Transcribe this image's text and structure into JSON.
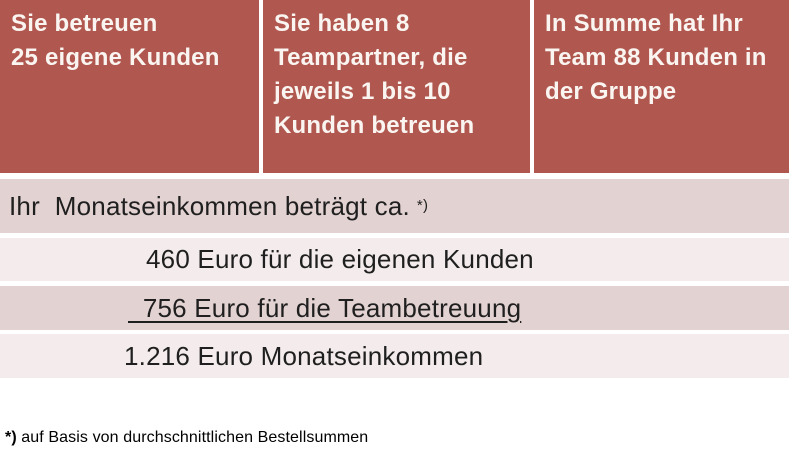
{
  "accent_colors": {
    "header_background": "#b0574f",
    "header_text": "#faf5f1",
    "row_dark": "#e3d2d2",
    "row_light": "#f4ecec",
    "body_text": "#1f1f1f"
  },
  "header": {
    "cells": [
      {
        "text": "Sie betreuen\n25 eigene Kunden"
      },
      {
        "text": "Sie haben 8\nTeampartner, die\njeweils 1 bis 10\nKunden betreuen"
      },
      {
        "text": "In Summe hat Ihr\nTeam 88 Kunden in\nder Gruppe"
      }
    ]
  },
  "income": {
    "heading": {
      "text": "Ihr  Monatseinkommen beträgt ca.",
      "marker": "*)"
    },
    "items": [
      {
        "text": "460 Euro für die eigenen Kunden",
        "underlined": false
      },
      {
        "text": "  756 Euro für die Teambetreuung",
        "underlined": true
      },
      {
        "text": "1.216 Euro Monatseinkommen",
        "underlined": false
      }
    ]
  },
  "footnote": {
    "marker": "*)",
    "text": " auf Basis von durchschnittlichen Bestellsummen"
  }
}
